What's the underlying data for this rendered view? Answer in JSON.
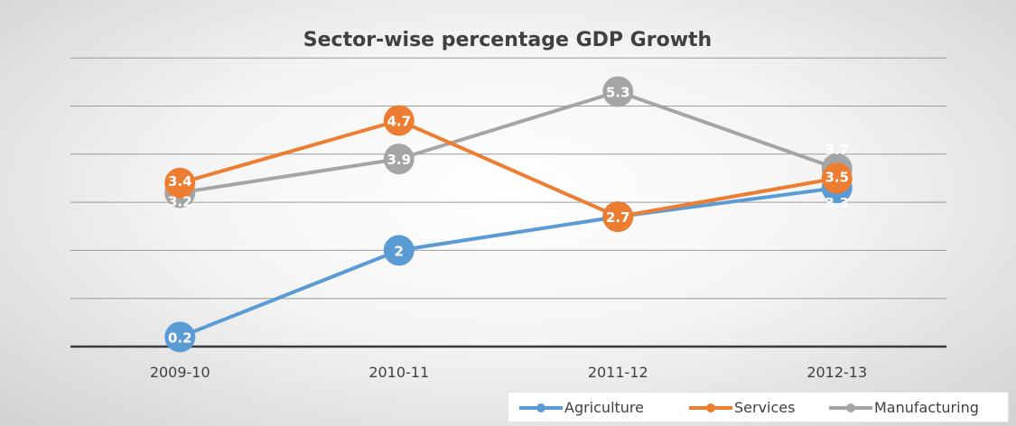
{
  "chart_data": {
    "type": "line",
    "title": "Sector-wise percentage GDP Growth",
    "categories": [
      "2009-10",
      "2010-11",
      "2011-12",
      "2012-13"
    ],
    "ylim": [
      0,
      6
    ],
    "grid": true,
    "legend_position": "bottom-right",
    "series": [
      {
        "name": "Agriculture",
        "color": "#5b9bd5",
        "values": [
          0.2,
          2,
          2.7,
          3.3
        ],
        "labels": [
          "0.2",
          "2",
          "",
          "3.3"
        ]
      },
      {
        "name": "Services",
        "color": "#ed7d31",
        "values": [
          3.4,
          4.7,
          2.7,
          3.5
        ],
        "labels": [
          "3.4",
          "4.7",
          "2.7",
          "3.5"
        ]
      },
      {
        "name": "Manufacturing",
        "color": "#a5a5a5",
        "values": [
          3.2,
          3.9,
          5.3,
          3.7
        ],
        "labels": [
          "3.2",
          "3.9",
          "5.3",
          "3.7"
        ]
      }
    ]
  }
}
